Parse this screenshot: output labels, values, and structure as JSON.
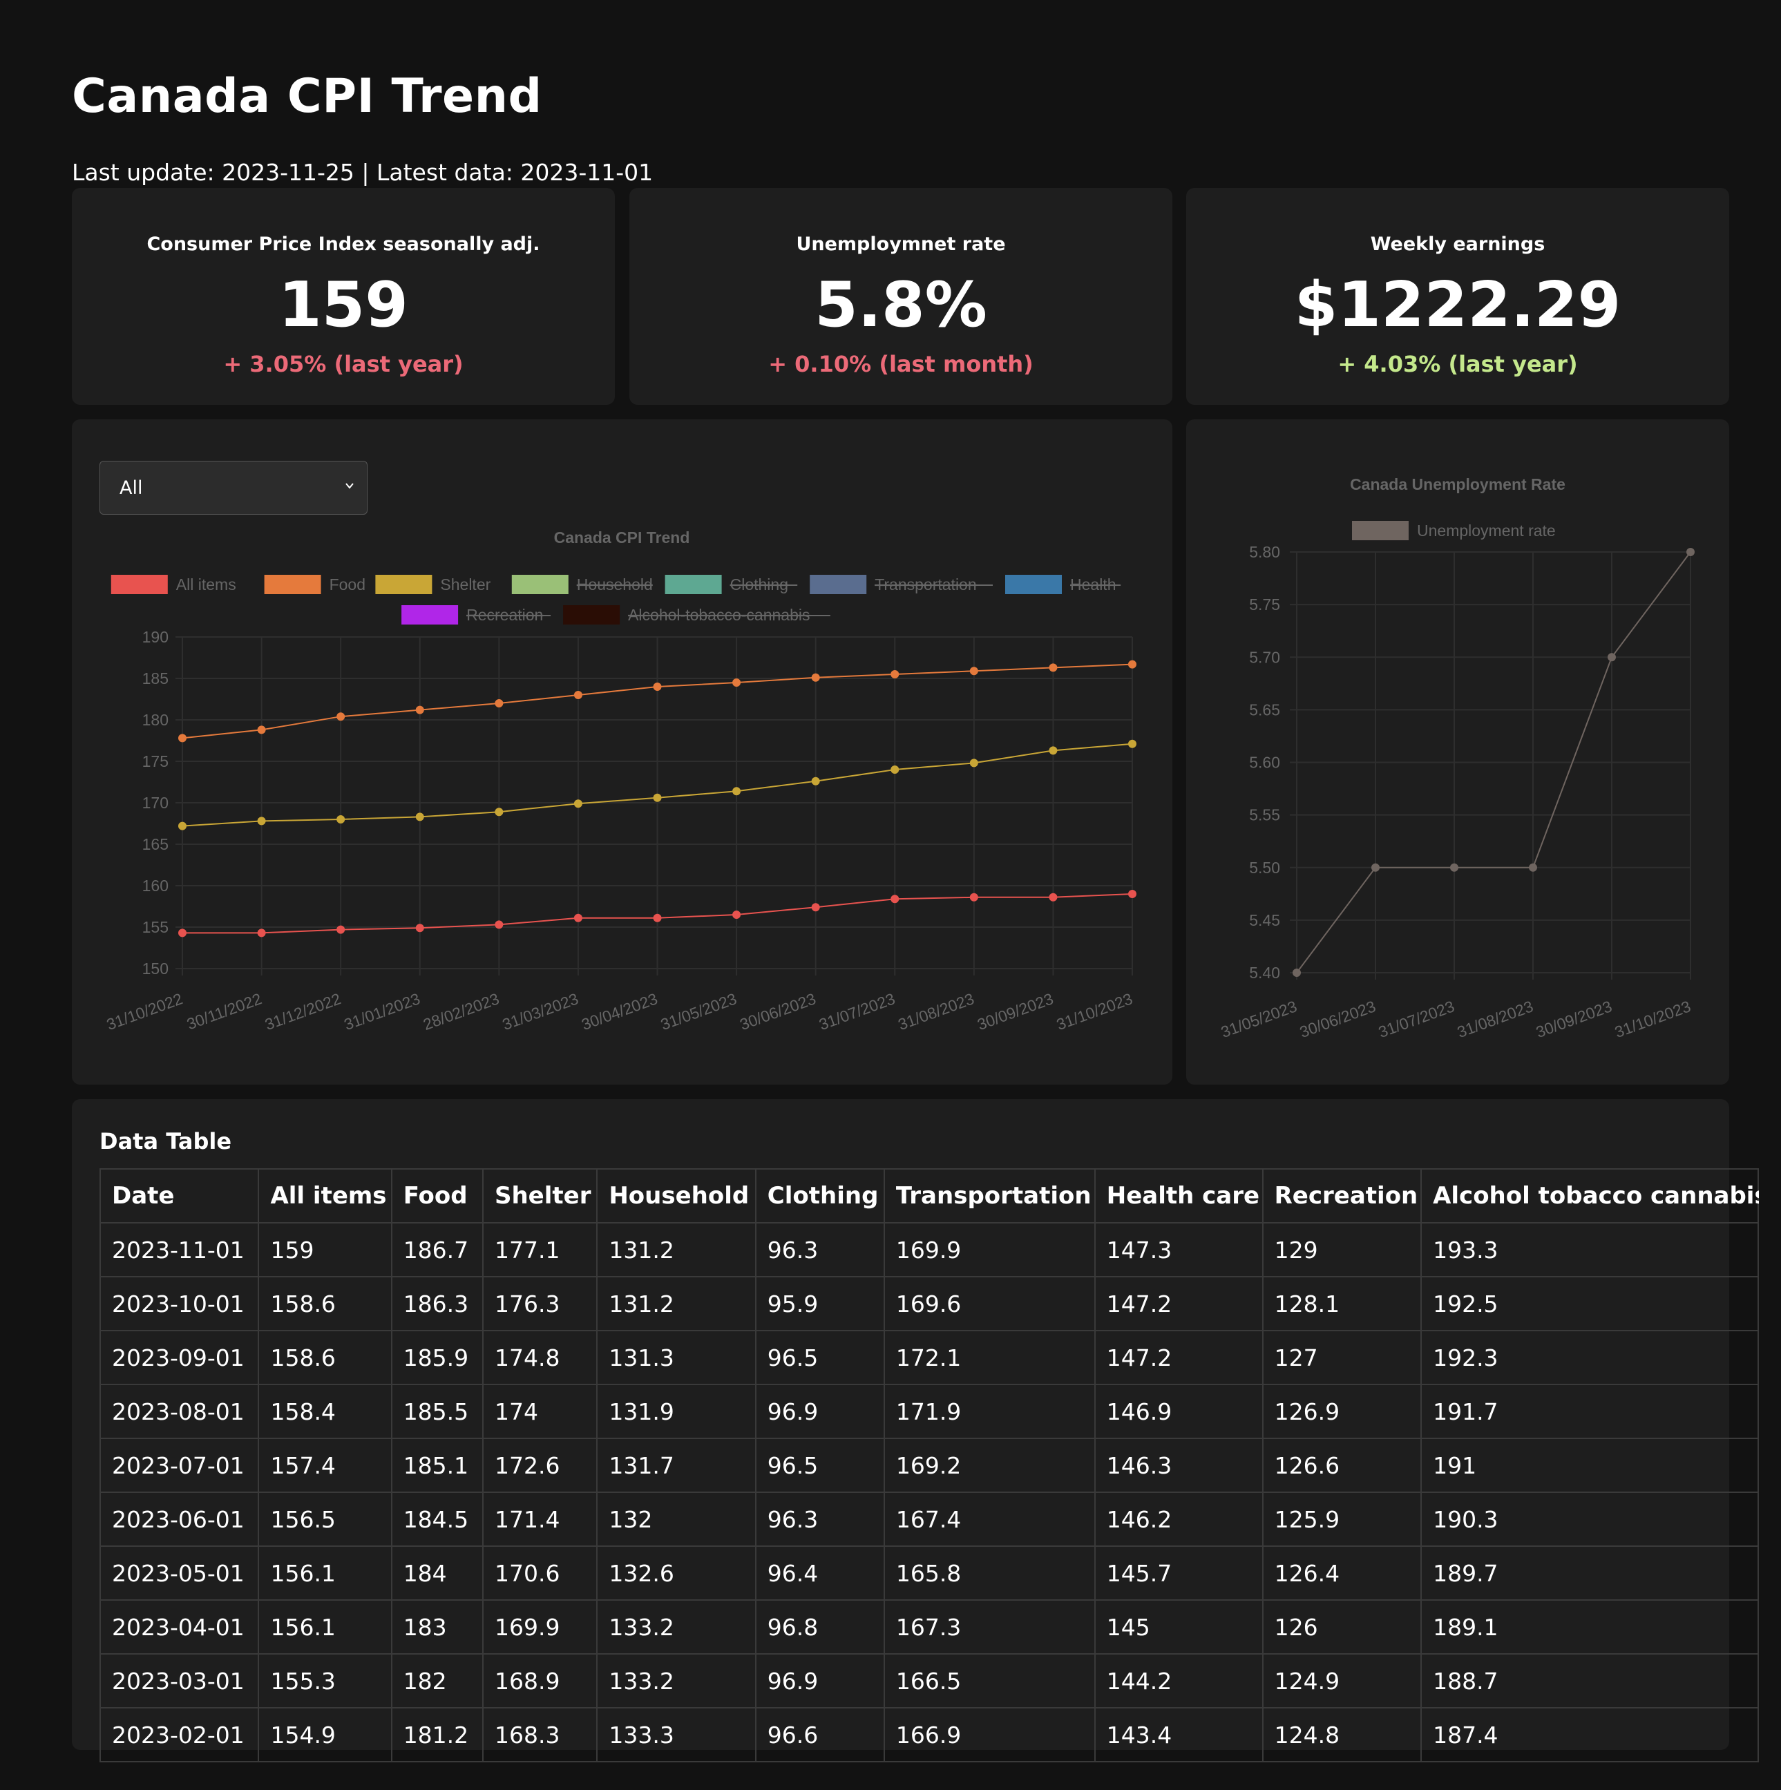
{
  "header": {
    "title": "Canada CPI Trend",
    "update_line": "Last update: 2023-11-25 | Latest data: 2023-11-01"
  },
  "kpis": [
    {
      "label": "Consumer Price Index seasonally adj.",
      "value": "159",
      "delta": "+ 3.05% (last year)",
      "trend": "negative"
    },
    {
      "label": "Unemploymnet rate",
      "value": "5.8%",
      "delta": "+ 0.10% (last month)",
      "trend": "negative"
    },
    {
      "label": "Weekly earnings",
      "value": "$1222.29",
      "delta": "+ 4.03% (last year)",
      "trend": "positive"
    }
  ],
  "filter": {
    "selected": "All",
    "icon": "chevron-down-icon"
  },
  "chart_data": [
    {
      "type": "line",
      "title": "Canada CPI Trend",
      "x": [
        "31/10/2022",
        "30/11/2022",
        "31/12/2022",
        "31/01/2023",
        "28/02/2023",
        "31/03/2023",
        "30/04/2023",
        "31/05/2023",
        "30/06/2023",
        "31/07/2023",
        "31/08/2023",
        "30/09/2023",
        "31/10/2023"
      ],
      "ylim": [
        150,
        190
      ],
      "yticks": [
        150,
        155,
        160,
        165,
        170,
        175,
        180,
        185,
        190
      ],
      "legend_position": "top",
      "legend": [
        {
          "name": "All items",
          "color": "#e8534f",
          "hidden": false
        },
        {
          "name": "Food",
          "color": "#e57a3c",
          "hidden": false
        },
        {
          "name": "Shelter",
          "color": "#c9a636",
          "hidden": false
        },
        {
          "name": "Household",
          "color": "#9ac077",
          "hidden": true
        },
        {
          "name": "Clothing",
          "color": "#5ea892",
          "hidden": true
        },
        {
          "name": "Transportation",
          "color": "#5a6d8f",
          "hidden": true
        },
        {
          "name": "Health",
          "color": "#3a78a8",
          "hidden": true
        },
        {
          "name": "Recreation",
          "color": "#b026e8",
          "hidden": true
        },
        {
          "name": "Alcohol-tobacco-cannabis",
          "color": "#2a0d05",
          "hidden": true
        }
      ],
      "series": [
        {
          "name": "All items",
          "color": "#e8534f",
          "values": [
            154.3,
            154.3,
            154.7,
            154.9,
            155.3,
            156.1,
            156.1,
            156.5,
            157.4,
            158.4,
            158.6,
            158.6,
            159.0
          ]
        },
        {
          "name": "Food",
          "color": "#e57a3c",
          "values": [
            177.8,
            178.8,
            180.4,
            181.2,
            182.0,
            183.0,
            184.0,
            184.5,
            185.1,
            185.5,
            185.9,
            186.3,
            186.7
          ]
        },
        {
          "name": "Shelter",
          "color": "#c9a636",
          "values": [
            167.2,
            167.8,
            168.0,
            168.3,
            168.9,
            169.9,
            170.6,
            171.4,
            172.6,
            174.0,
            174.8,
            176.3,
            177.1
          ]
        }
      ],
      "grid": true
    },
    {
      "type": "line",
      "title": "Canada Unemployment Rate",
      "x": [
        "31/05/2023",
        "30/06/2023",
        "31/07/2023",
        "31/08/2023",
        "30/09/2023",
        "31/10/2023"
      ],
      "ylim": [
        5.4,
        5.8
      ],
      "yticks": [
        "5.40",
        "5.45",
        "5.50",
        "5.55",
        "5.60",
        "5.65",
        "5.70",
        "5.75",
        "5.80"
      ],
      "legend_position": "top",
      "series": [
        {
          "name": "Unemployment rate",
          "color": "#6f6560",
          "values": [
            5.4,
            5.5,
            5.5,
            5.5,
            5.7,
            5.8
          ]
        }
      ],
      "grid": true
    }
  ],
  "table": {
    "title": "Data Table",
    "columns": [
      "Date",
      "All items",
      "Food",
      "Shelter",
      "Household",
      "Clothing",
      "Transportation",
      "Health care",
      "Recreation",
      "Alcohol tobacco cannabis"
    ],
    "rows": [
      [
        "2023-11-01",
        "159",
        "186.7",
        "177.1",
        "131.2",
        "96.3",
        "169.9",
        "147.3",
        "129",
        "193.3"
      ],
      [
        "2023-10-01",
        "158.6",
        "186.3",
        "176.3",
        "131.2",
        "95.9",
        "169.6",
        "147.2",
        "128.1",
        "192.5"
      ],
      [
        "2023-09-01",
        "158.6",
        "185.9",
        "174.8",
        "131.3",
        "96.5",
        "172.1",
        "147.2",
        "127",
        "192.3"
      ],
      [
        "2023-08-01",
        "158.4",
        "185.5",
        "174",
        "131.9",
        "96.9",
        "171.9",
        "146.9",
        "126.9",
        "191.7"
      ],
      [
        "2023-07-01",
        "157.4",
        "185.1",
        "172.6",
        "131.7",
        "96.5",
        "169.2",
        "146.3",
        "126.6",
        "191"
      ],
      [
        "2023-06-01",
        "156.5",
        "184.5",
        "171.4",
        "132",
        "96.3",
        "167.4",
        "146.2",
        "125.9",
        "190.3"
      ],
      [
        "2023-05-01",
        "156.1",
        "184",
        "170.6",
        "132.6",
        "96.4",
        "165.8",
        "145.7",
        "126.4",
        "189.7"
      ],
      [
        "2023-04-01",
        "156.1",
        "183",
        "169.9",
        "133.2",
        "96.8",
        "167.3",
        "145",
        "126",
        "189.1"
      ],
      [
        "2023-03-01",
        "155.3",
        "182",
        "168.9",
        "133.2",
        "96.9",
        "166.5",
        "144.2",
        "124.9",
        "188.7"
      ],
      [
        "2023-02-01",
        "154.9",
        "181.2",
        "168.3",
        "133.3",
        "96.6",
        "166.9",
        "143.4",
        "124.8",
        "187.4"
      ]
    ]
  }
}
